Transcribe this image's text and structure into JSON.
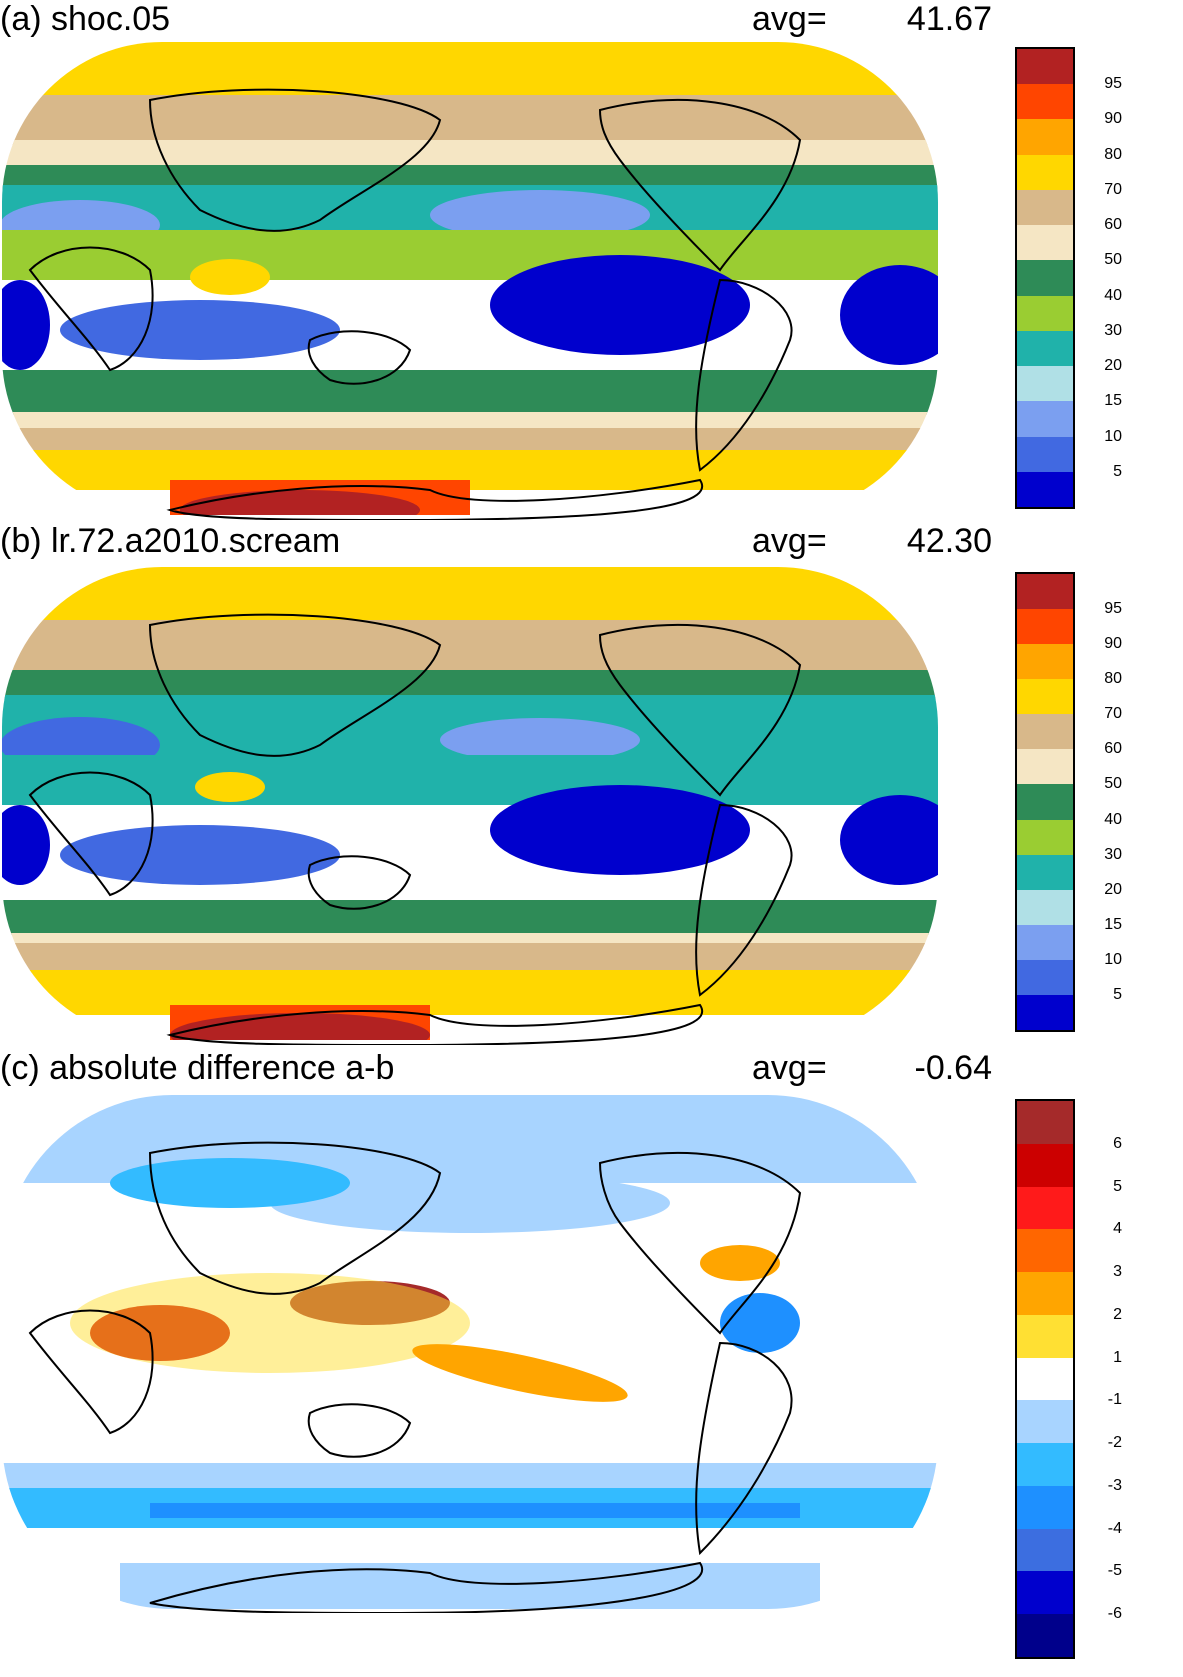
{
  "panels": [
    {
      "title": "(a) shoc.05",
      "avg_label": "avg=",
      "avg_value": "41.67",
      "colorbar": {
        "labels": [
          "95",
          "90",
          "80",
          "70",
          "60",
          "50",
          "40",
          "30",
          "20",
          "15",
          "10",
          "5"
        ],
        "colors": [
          "#b22222",
          "#ff4500",
          "#ffa500",
          "#ffd700",
          "#d8b88a",
          "#f5e6c4",
          "#2e8b57",
          "#9acd32",
          "#20b2aa",
          "#b0e0e6",
          "#7b9ff0",
          "#4169e1",
          "#0000cd"
        ]
      },
      "map": {
        "regions": [
          {
            "name": "polar-north",
            "color": "#ffd700"
          },
          {
            "name": "subpolar-north",
            "color": "#d8b88a"
          },
          {
            "name": "midlat-north",
            "color": "#f5e6c4"
          },
          {
            "name": "storm-north",
            "color": "#2e8b57"
          },
          {
            "name": "subtrop-north",
            "color": "#20b2aa"
          },
          {
            "name": "trade-north",
            "color": "#7b9ff0"
          },
          {
            "name": "equator",
            "color": "#9acd32"
          },
          {
            "name": "trade-south",
            "color": "#4169e1"
          },
          {
            "name": "stratocumulus",
            "color": "#0000cd"
          },
          {
            "name": "subtrop-south",
            "color": "#2e8b57"
          },
          {
            "name": "storm-south",
            "color": "#d8b88a"
          },
          {
            "name": "southern-ocean",
            "color": "#ffd700"
          },
          {
            "name": "antarctic",
            "color": "#b22222"
          }
        ]
      }
    },
    {
      "title": "(b) lr.72.a2010.scream",
      "avg_label": "avg=",
      "avg_value": "42.30",
      "colorbar": {
        "labels": [
          "95",
          "90",
          "80",
          "70",
          "60",
          "50",
          "40",
          "30",
          "20",
          "15",
          "10",
          "5"
        ],
        "colors": [
          "#b22222",
          "#ff4500",
          "#ffa500",
          "#ffd700",
          "#d8b88a",
          "#f5e6c4",
          "#2e8b57",
          "#9acd32",
          "#20b2aa",
          "#b0e0e6",
          "#7b9ff0",
          "#4169e1",
          "#0000cd"
        ]
      },
      "map": {
        "regions": [
          {
            "name": "polar-north",
            "color": "#ffd700"
          },
          {
            "name": "subpolar-north",
            "color": "#d8b88a"
          },
          {
            "name": "midlat-north",
            "color": "#f5e6c4"
          },
          {
            "name": "storm-north",
            "color": "#2e8b57"
          },
          {
            "name": "subtrop-north",
            "color": "#20b2aa"
          },
          {
            "name": "trade-north",
            "color": "#7b9ff0"
          },
          {
            "name": "equator",
            "color": "#20b2aa"
          },
          {
            "name": "trade-south",
            "color": "#4169e1"
          },
          {
            "name": "stratocumulus",
            "color": "#0000cd"
          },
          {
            "name": "subtrop-south",
            "color": "#2e8b57"
          },
          {
            "name": "storm-south",
            "color": "#d8b88a"
          },
          {
            "name": "southern-ocean",
            "color": "#ffd700"
          },
          {
            "name": "antarctic",
            "color": "#b22222"
          }
        ]
      }
    },
    {
      "title": "(c) absolute difference a-b",
      "avg_label": "avg=",
      "avg_value": "-0.64",
      "colorbar": {
        "labels": [
          "6",
          "5",
          "4",
          "3",
          "2",
          "1",
          "-1",
          "-2",
          "-3",
          "-4",
          "-5",
          "-6"
        ],
        "colors": [
          "#a52a2a",
          "#cc0000",
          "#ff1a1a",
          "#ff6600",
          "#ffa500",
          "#ffe033",
          "#ffffff",
          "#a8d4ff",
          "#33bbff",
          "#1e90ff",
          "#3c6ee0",
          "#0000cd",
          "#00008b"
        ]
      },
      "map": {
        "regions": [
          {
            "name": "polar-north",
            "color": "#a8d4ff"
          },
          {
            "name": "north-pacific",
            "color": "#a8d4ff"
          },
          {
            "name": "warm-pool",
            "color": "#a52a2a"
          },
          {
            "name": "africa-indian",
            "color": "#cc0000"
          },
          {
            "name": "spcz",
            "color": "#ffa500"
          },
          {
            "name": "southern-ocean",
            "color": "#33bbff"
          },
          {
            "name": "antarctic",
            "color": "#a8d4ff"
          }
        ]
      }
    }
  ]
}
